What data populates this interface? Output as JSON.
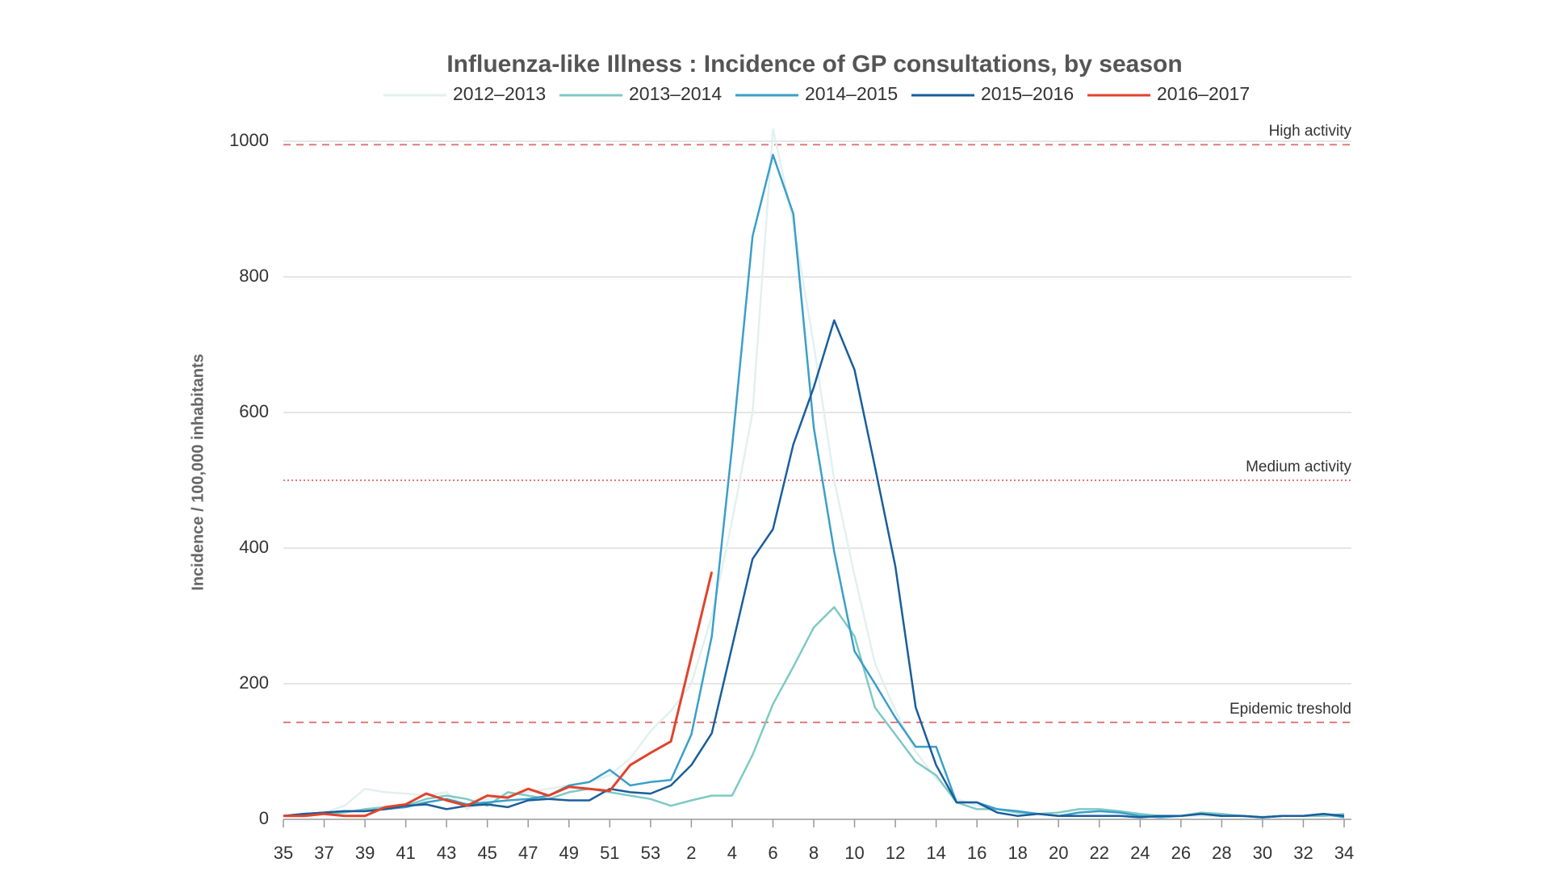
{
  "chart_data": {
    "type": "line",
    "title": "Influenza-like Illness : Incidence of GP consultations, by season",
    "y_label": "Incidence / 100,000 inhabitants",
    "categories": [
      35,
      null,
      37,
      null,
      39,
      null,
      41,
      null,
      43,
      null,
      45,
      null,
      47,
      null,
      49,
      null,
      51,
      null,
      53,
      null,
      2,
      null,
      4,
      null,
      6,
      null,
      8,
      null,
      10,
      null,
      12,
      null,
      14,
      null,
      16,
      null,
      18,
      null,
      20,
      null,
      22,
      null,
      24,
      null,
      26,
      null,
      28,
      null,
      30,
      null,
      32,
      null,
      34
    ],
    "ylim": [
      0,
      1000
    ],
    "yticks": [
      0,
      200,
      400,
      600,
      800,
      1000
    ],
    "grid": true,
    "legend": "top",
    "annotations": [
      {
        "label": "High activity",
        "value": 995,
        "style": "dashed",
        "color": "#e07a7a"
      },
      {
        "label": "Medium activity",
        "value": 500,
        "style": "dotted",
        "color": "#e07a7a"
      },
      {
        "label": "Epidemic treshold",
        "value": 143,
        "style": "dashed",
        "color": "#e07a7a"
      }
    ],
    "series": [
      {
        "name": "2012–2013",
        "color": "#e3f0f0",
        "values": [
          5,
          8,
          10,
          20,
          45,
          40,
          38,
          35,
          40,
          15,
          30,
          35,
          40,
          45,
          50,
          55,
          65,
          90,
          130,
          160,
          200,
          300,
          440,
          600,
          1018,
          880,
          700,
          500,
          360,
          230,
          160,
          100,
          60,
          30,
          20,
          15,
          10,
          8,
          5,
          5,
          5,
          5,
          5,
          5,
          5,
          5,
          5,
          5,
          5,
          5,
          5,
          5,
          5
        ]
      },
      {
        "name": "2013–2014",
        "color": "#7fc9c4",
        "values": [
          5,
          5,
          8,
          10,
          15,
          18,
          20,
          30,
          35,
          30,
          20,
          40,
          35,
          30,
          40,
          45,
          40,
          35,
          30,
          20,
          28,
          35,
          35,
          95,
          170,
          225,
          283,
          313,
          270,
          165,
          125,
          85,
          65,
          25,
          15,
          15,
          10,
          8,
          10,
          15,
          15,
          12,
          8,
          5,
          5,
          10,
          8,
          5,
          3,
          5,
          5,
          5,
          8
        ]
      },
      {
        "name": "2014–2015",
        "color": "#3a9fc9",
        "values": [
          5,
          8,
          10,
          12,
          12,
          15,
          18,
          25,
          30,
          22,
          25,
          28,
          30,
          35,
          50,
          55,
          73,
          50,
          55,
          58,
          125,
          270,
          550,
          860,
          980,
          893,
          578,
          395,
          248,
          200,
          150,
          107,
          107,
          25,
          25,
          15,
          12,
          8,
          5,
          10,
          12,
          10,
          5,
          3,
          5,
          8,
          5,
          5,
          3,
          5,
          5,
          8,
          3
        ]
      },
      {
        "name": "2015–2016",
        "color": "#1a5e9a",
        "values": [
          5,
          8,
          10,
          12,
          12,
          15,
          20,
          22,
          15,
          20,
          22,
          18,
          28,
          30,
          28,
          28,
          45,
          40,
          38,
          50,
          80,
          127,
          255,
          384,
          428,
          553,
          637,
          736,
          663,
          520,
          373,
          165,
          80,
          25,
          25,
          10,
          5,
          8,
          5,
          5,
          5,
          5,
          3,
          5,
          5,
          8,
          5,
          5,
          3,
          5,
          5,
          8,
          5
        ]
      },
      {
        "name": "2016–2017",
        "color": "#e0442c",
        "values": [
          5,
          5,
          8,
          5,
          5,
          18,
          22,
          38,
          28,
          20,
          35,
          32,
          45,
          35,
          48,
          45,
          42,
          80,
          98,
          115,
          240,
          365,
          null,
          null,
          null,
          null,
          null,
          null,
          null,
          null,
          null,
          null,
          null,
          null,
          null,
          null,
          null,
          null,
          null,
          null,
          null,
          null,
          null,
          null,
          null,
          null,
          null,
          null,
          null,
          null,
          null,
          null,
          null
        ]
      }
    ]
  }
}
